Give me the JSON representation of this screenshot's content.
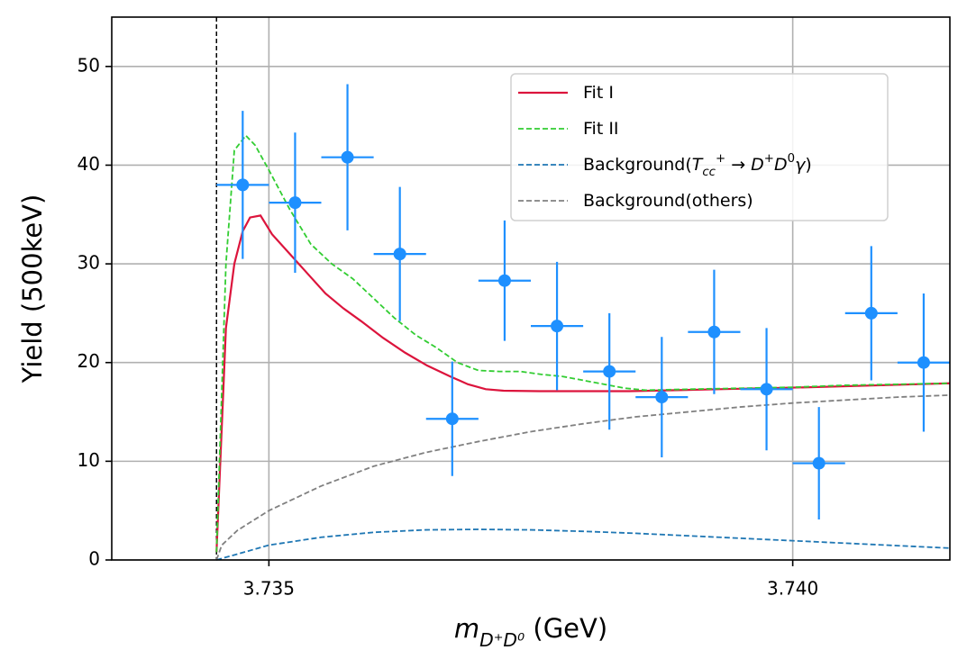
{
  "chart_data": {
    "type": "errorbar_fit",
    "xlabel": [
      {
        "text": "m",
        "italic": true
      },
      {
        "text": "D⁺D⁰",
        "sub": true,
        "italic": true
      },
      {
        "text": " (GeV)"
      }
    ],
    "ylabel": "Yield (500keV)",
    "xlim": [
      3.7335,
      3.7415
    ],
    "ylim": [
      0,
      55
    ],
    "xticks": [
      3.735,
      {
        "value": 3.74,
        "label": "3.740"
      }
    ],
    "yticks": [
      0,
      10,
      20,
      30,
      40,
      50
    ],
    "grid": true,
    "legend": "upper right",
    "vline_x": 3.7345,
    "data": {
      "color": "#1e90ff",
      "xerr": 0.00025,
      "x": [
        3.73475,
        3.73525,
        3.73575,
        3.73625,
        3.73675,
        3.73725,
        3.73775,
        3.73825,
        3.73875,
        3.73925,
        3.73975,
        3.74025,
        3.74075,
        3.74125
      ],
      "values": [
        38,
        36.2,
        40.8,
        31,
        14.3,
        28.3,
        23.7,
        19.1,
        16.5,
        23.1,
        17.3,
        9.8,
        25,
        20
      ],
      "errors": [
        7.5,
        7.1,
        7.4,
        6.8,
        5.8,
        6.1,
        6.5,
        5.9,
        6.1,
        6.3,
        6.2,
        5.7,
        6.8,
        7
      ]
    },
    "series": [
      {
        "name": [
          {
            "text": "Fit I"
          }
        ],
        "color": "#dc143c",
        "style": "solid",
        "x": [
          3.7345,
          3.73459,
          3.73467,
          3.73475,
          3.73482,
          3.73492,
          3.73503,
          3.7352,
          3.73537,
          3.73554,
          3.73571,
          3.73588,
          3.73609,
          3.7363,
          3.73651,
          3.73673,
          3.7369,
          3.73707,
          3.73724,
          3.73758,
          3.73844,
          3.7393,
          3.74016,
          3.7415
        ],
        "values": [
          0.8,
          23.5,
          30,
          33.3,
          34.7,
          34.9,
          33,
          31,
          29,
          27,
          25.5,
          24.2,
          22.5,
          21,
          19.7,
          18.6,
          17.8,
          17.3,
          17.15,
          17.1,
          17.1,
          17.3,
          17.5,
          17.9
        ]
      },
      {
        "name": [
          {
            "text": "Fit II"
          }
        ],
        "color": "#32cd32",
        "style": "dashed",
        "x": [
          3.7345,
          3.73459,
          3.73467,
          3.73478,
          3.73487,
          3.735,
          3.7352,
          3.7354,
          3.7356,
          3.7358,
          3.736,
          3.7362,
          3.7364,
          3.7366,
          3.7368,
          3.737,
          3.7372,
          3.7374,
          3.7376,
          3.7378,
          3.738,
          3.7382,
          3.7384,
          3.7386,
          3.739,
          3.7395,
          3.74,
          3.7405,
          3.741,
          3.7415
        ],
        "values": [
          0.8,
          30,
          41.5,
          43,
          42,
          39.5,
          35.5,
          32,
          30,
          28.5,
          26.5,
          24.5,
          22.8,
          21.5,
          20,
          19.2,
          19.1,
          19.1,
          18.8,
          18.6,
          18.2,
          17.8,
          17.4,
          17.2,
          17.3,
          17.4,
          17.5,
          17.7,
          17.8,
          17.9
        ]
      },
      {
        "name": [
          {
            "text": "Background("
          },
          {
            "text": "T",
            "italic": true
          },
          {
            "text": "cc",
            "sub": true,
            "italic": true
          },
          {
            "text": "+",
            "sup": true
          },
          {
            "text": " → "
          },
          {
            "text": "D",
            "italic": true
          },
          {
            "text": "+",
            "sup": true
          },
          {
            "text": "D",
            "italic": true
          },
          {
            "text": "0",
            "sup": true
          },
          {
            "text": "γ",
            "italic": true
          },
          {
            "text": ")"
          }
        ],
        "color": "#1f77b4",
        "style": "dashed",
        "x": [
          3.7345,
          3.735,
          3.7355,
          3.736,
          3.7365,
          3.737,
          3.7375,
          3.738,
          3.7385,
          3.739,
          3.7395,
          3.74,
          3.7405,
          3.741,
          3.7415
        ],
        "values": [
          0,
          1.5,
          2.3,
          2.8,
          3.05,
          3.1,
          3.05,
          2.9,
          2.7,
          2.45,
          2.2,
          1.95,
          1.7,
          1.45,
          1.2
        ]
      },
      {
        "name": [
          {
            "text": "Background(others)"
          }
        ],
        "color": "#808080",
        "style": "dashed",
        "x": [
          3.7345,
          3.73455,
          3.7347,
          3.735,
          3.7355,
          3.736,
          3.7365,
          3.737,
          3.7375,
          3.738,
          3.7385,
          3.739,
          3.7395,
          3.74,
          3.7405,
          3.741,
          3.7415
        ],
        "values": [
          0,
          1.5,
          3,
          5,
          7.5,
          9.5,
          10.9,
          12,
          13,
          13.8,
          14.5,
          15,
          15.5,
          15.9,
          16.2,
          16.5,
          16.7
        ]
      }
    ]
  }
}
